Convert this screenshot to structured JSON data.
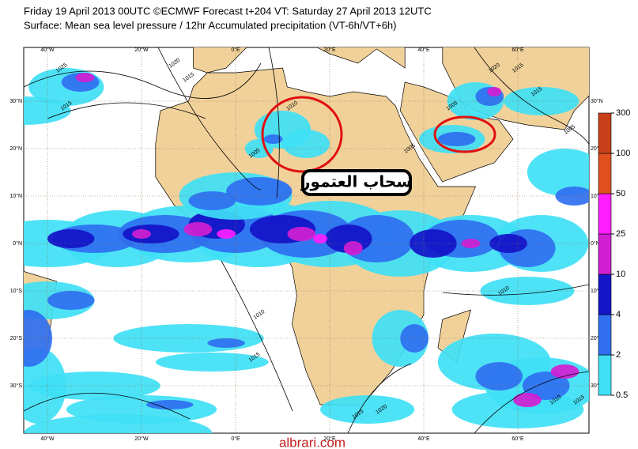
{
  "header": {
    "line1": "Friday 19 April 2013 00UTC ©ECMWF Forecast t+204 VT: Saturday 27 April 2013 12UTC",
    "line2": "Surface: Mean sea level pressure / 12hr Accumulated precipitation (VT-6h/VT+6h)"
  },
  "map": {
    "longitudes": [
      {
        "value": -40,
        "label": "40°W"
      },
      {
        "value": -20,
        "label": "20°W"
      },
      {
        "value": 0,
        "label": "0°E"
      },
      {
        "value": 20,
        "label": "20°E"
      },
      {
        "value": 40,
        "label": "40°E"
      },
      {
        "value": 60,
        "label": "60°E"
      }
    ],
    "latitudes": [
      {
        "value": 30,
        "label": "30°N"
      },
      {
        "value": 20,
        "label": "20°N"
      },
      {
        "value": 10,
        "label": "10°N"
      },
      {
        "value": 0,
        "label": "0°N"
      },
      {
        "value": -10,
        "label": "10°S"
      },
      {
        "value": -20,
        "label": "20°S"
      },
      {
        "value": -30,
        "label": "30°S"
      }
    ],
    "isobars": [
      {
        "label": "1025",
        "lon": -37,
        "lat": 37
      },
      {
        "label": "1015",
        "lon": -36,
        "lat": 29
      },
      {
        "label": "1020",
        "lon": -13,
        "lat": 38
      },
      {
        "label": "1015",
        "lon": -10,
        "lat": 35
      },
      {
        "label": "1010",
        "lon": 12,
        "lat": 29
      },
      {
        "label": "1005",
        "lon": 4,
        "lat": 19
      },
      {
        "label": "1005",
        "lon": 37,
        "lat": 20
      },
      {
        "label": "1005",
        "lon": 46,
        "lat": 29
      },
      {
        "label": "1020",
        "lon": 55,
        "lat": 37
      },
      {
        "label": "1015",
        "lon": 60,
        "lat": 37
      },
      {
        "label": "1015",
        "lon": 64,
        "lat": 32
      },
      {
        "label": "1005",
        "lon": 71,
        "lat": 24
      },
      {
        "label": "1010",
        "lon": 5,
        "lat": -15
      },
      {
        "label": "1015",
        "lon": 4,
        "lat": -24
      },
      {
        "label": "1010",
        "lon": 57,
        "lat": -10
      },
      {
        "label": "1015",
        "lon": 26,
        "lat": -36
      },
      {
        "label": "1020",
        "lon": 31,
        "lat": -35
      },
      {
        "label": "1010",
        "lon": 68,
        "lat": -33
      },
      {
        "label": "1015",
        "lon": 73,
        "lat": -33
      }
    ],
    "annotation": "سحاب العتمور",
    "watermark": "albrari.com"
  },
  "colorbar": {
    "levels": [
      0.5,
      2,
      4,
      10,
      25,
      50,
      100,
      300
    ],
    "colors": [
      "#3fe0f5",
      "#2f6ff0",
      "#1414c8",
      "#d21ed2",
      "#ff1eff",
      "#e0501e",
      "#c8401a"
    ]
  }
}
